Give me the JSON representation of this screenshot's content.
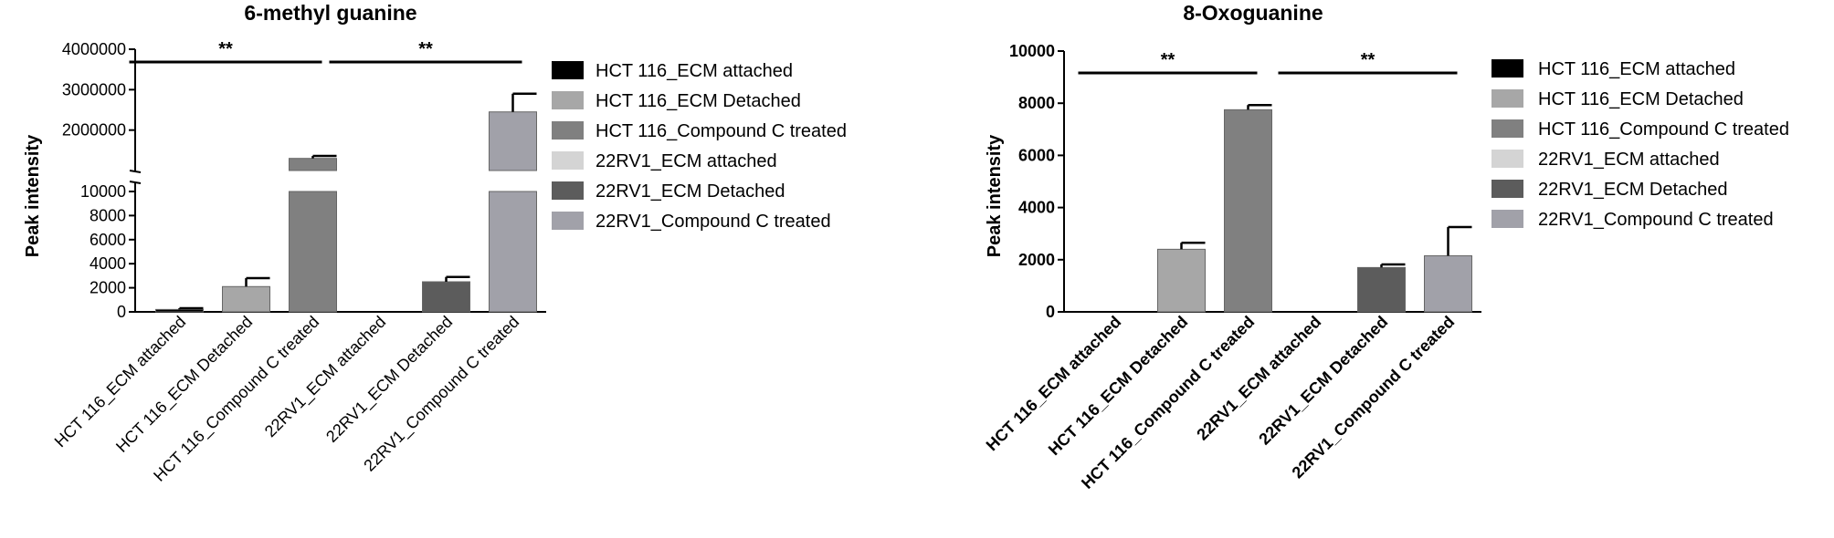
{
  "chart_data": [
    {
      "type": "bar",
      "title": "6-methyl guanine",
      "ylabel": "Peak intensity",
      "xlabel": "",
      "broken_axis": true,
      "ylim_lower": [
        0,
        10000
      ],
      "ylim_upper": [
        1000000,
        4000000
      ],
      "yticks_lower": [
        0,
        2000,
        4000,
        6000,
        8000,
        10000
      ],
      "yticks_upper": [
        2000000,
        3000000,
        4000000
      ],
      "ytick_labels_lower": [
        "0",
        "2000",
        "4000",
        "6000",
        "8000",
        "10000"
      ],
      "ytick_labels_upper": [
        "2000000",
        "3000000",
        "4000000"
      ],
      "categories": [
        "HCT 116_ECM attached",
        "HCT 116_ECM Detached",
        "HCT 116_Compound C treated",
        "22RV1_ECM attached",
        "22RV1_ECM Detached",
        "22RV1_Compound C treated"
      ],
      "values": [
        200,
        2100,
        1300000,
        0,
        2500,
        2450000
      ],
      "errors": [
        100,
        700,
        60000,
        0,
        400,
        450000
      ],
      "colors": [
        "#000000",
        "#a7a7a7",
        "#808080",
        "#d4d4d4",
        "#5c5c5c",
        "#a1a1a9"
      ],
      "significance": [
        {
          "from": 0,
          "to": 2,
          "label": "**"
        },
        {
          "from": 3,
          "to": 5,
          "label": "**"
        }
      ],
      "legend": {
        "position": "right",
        "entries": [
          "HCT 116_ECM attached",
          "HCT 116_ECM Detached",
          "HCT 116_Compound C treated",
          "22RV1_ECM attached",
          "22RV1_ECM Detached",
          "22RV1_Compound C treated"
        ]
      },
      "grid": false
    },
    {
      "type": "bar",
      "title": "8-Oxoguanine",
      "ylabel": "Peak intensity",
      "xlabel": "",
      "ylim": [
        0,
        10000
      ],
      "yticks": [
        0,
        2000,
        4000,
        6000,
        8000,
        10000
      ],
      "ytick_labels": [
        "0",
        "2000",
        "4000",
        "6000",
        "8000",
        "10000"
      ],
      "categories": [
        "HCT 116_ECM attached",
        "HCT 116_ECM Detached",
        "HCT 116_Compound C treated",
        "22RV1_ECM attached",
        "22RV1_ECM Detached",
        "22RV1_Compound C treated"
      ],
      "values": [
        0,
        2400,
        7750,
        0,
        1700,
        2150
      ],
      "errors": [
        0,
        250,
        180,
        0,
        120,
        1100
      ],
      "colors": [
        "#000000",
        "#a7a7a7",
        "#808080",
        "#d4d4d4",
        "#5c5c5c",
        "#a1a1a9"
      ],
      "significance": [
        {
          "from": 0,
          "to": 2,
          "label": "**"
        },
        {
          "from": 3,
          "to": 5,
          "label": "**"
        }
      ],
      "legend": {
        "position": "right",
        "entries": [
          "HCT 116_ECM attached",
          "HCT 116_ECM Detached",
          "HCT 116_Compound C treated",
          "22RV1_ECM attached",
          "22RV1_ECM Detached",
          "22RV1_Compound C treated"
        ]
      },
      "grid": false
    }
  ]
}
